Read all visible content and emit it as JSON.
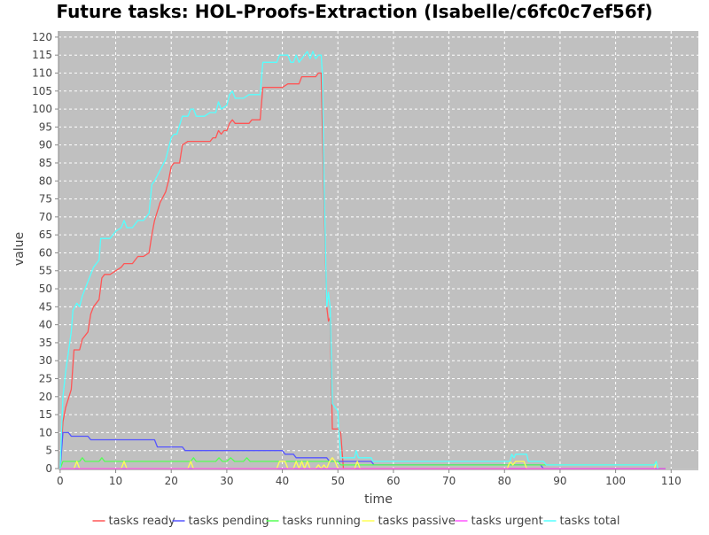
{
  "chart_data": {
    "type": "line",
    "title": "Future tasks: HOL-Proofs-Extraction (Isabelle/c6fc0c7ef56f)",
    "xlabel": "time",
    "ylabel": "value",
    "xlim": [
      -0.3,
      114.9
    ],
    "ylim": [
      0,
      121.7
    ],
    "xticks": [
      0,
      10,
      20,
      30,
      40,
      50,
      60,
      70,
      80,
      90,
      100,
      110
    ],
    "yticks": [
      0,
      5,
      10,
      15,
      20,
      25,
      30,
      35,
      40,
      45,
      50,
      55,
      60,
      65,
      70,
      75,
      80,
      85,
      90,
      95,
      100,
      105,
      110,
      115,
      120
    ],
    "grid": true,
    "legend_position": "bottom",
    "plot_background": "#c0c0c0",
    "series": [
      {
        "name": "tasks ready",
        "color": "#ff5555",
        "points": [
          [
            0,
            0
          ],
          [
            0.5,
            13
          ],
          [
            1,
            17
          ],
          [
            2,
            22
          ],
          [
            2.5,
            33
          ],
          [
            3.5,
            33
          ],
          [
            4,
            36
          ],
          [
            5,
            38
          ],
          [
            5.5,
            43
          ],
          [
            6,
            45
          ],
          [
            6.5,
            46
          ],
          [
            7,
            47
          ],
          [
            7.5,
            53
          ],
          [
            8,
            54
          ],
          [
            9,
            54
          ],
          [
            10,
            55
          ],
          [
            11,
            56
          ],
          [
            11.5,
            57
          ],
          [
            13,
            57
          ],
          [
            14,
            59
          ],
          [
            15,
            59
          ],
          [
            16,
            60
          ],
          [
            16.5,
            65
          ],
          [
            17,
            69
          ],
          [
            18,
            74
          ],
          [
            19,
            77
          ],
          [
            19.5,
            80
          ],
          [
            20,
            84
          ],
          [
            20.5,
            85
          ],
          [
            21.5,
            85
          ],
          [
            22,
            90
          ],
          [
            23,
            91
          ],
          [
            27,
            91
          ],
          [
            27.5,
            92
          ],
          [
            28,
            92
          ],
          [
            28.5,
            94
          ],
          [
            29,
            93
          ],
          [
            29.5,
            94
          ],
          [
            30,
            94
          ],
          [
            30.5,
            96
          ],
          [
            31,
            97
          ],
          [
            31.5,
            96
          ],
          [
            34,
            96
          ],
          [
            34.5,
            97
          ],
          [
            36,
            97
          ],
          [
            36.5,
            106
          ],
          [
            40,
            106
          ],
          [
            41,
            107
          ],
          [
            43,
            107
          ],
          [
            43.5,
            109
          ],
          [
            46,
            109
          ],
          [
            46.5,
            110
          ],
          [
            47,
            110
          ],
          [
            47.5,
            75
          ],
          [
            48,
            45
          ],
          [
            48.3,
            41
          ],
          [
            48.6,
            42
          ],
          [
            49,
            11
          ],
          [
            50,
            11
          ],
          [
            50.5,
            10
          ],
          [
            51,
            0
          ],
          [
            109,
            0
          ]
        ]
      },
      {
        "name": "tasks pending",
        "color": "#5555ff",
        "points": [
          [
            0,
            0
          ],
          [
            0.5,
            10
          ],
          [
            1.5,
            10
          ],
          [
            2,
            9
          ],
          [
            5,
            9
          ],
          [
            5.5,
            8
          ],
          [
            17,
            8
          ],
          [
            17.5,
            6
          ],
          [
            22,
            6
          ],
          [
            22.5,
            5
          ],
          [
            40,
            5
          ],
          [
            40.5,
            4
          ],
          [
            42,
            4
          ],
          [
            42.5,
            3
          ],
          [
            48,
            3
          ],
          [
            48.5,
            2
          ],
          [
            56,
            2
          ],
          [
            56.5,
            1
          ],
          [
            86.5,
            1
          ],
          [
            87,
            0
          ],
          [
            109,
            0
          ]
        ]
      },
      {
        "name": "tasks running",
        "color": "#55ff55",
        "points": [
          [
            0,
            0
          ],
          [
            0.5,
            2
          ],
          [
            3.5,
            2
          ],
          [
            4,
            3
          ],
          [
            4.5,
            2
          ],
          [
            7,
            2
          ],
          [
            7.5,
            3
          ],
          [
            8,
            2
          ],
          [
            23.5,
            2
          ],
          [
            24,
            3
          ],
          [
            24.5,
            2
          ],
          [
            28,
            2
          ],
          [
            28.6,
            3
          ],
          [
            29.2,
            2
          ],
          [
            30,
            2
          ],
          [
            30.7,
            3
          ],
          [
            31.4,
            2
          ],
          [
            33,
            2
          ],
          [
            33.6,
            3
          ],
          [
            34.2,
            2
          ],
          [
            49,
            2
          ],
          [
            50,
            2
          ],
          [
            50.5,
            1
          ],
          [
            107,
            1
          ],
          [
            107.3,
            2
          ],
          [
            107.6,
            0
          ],
          [
            109,
            0
          ]
        ]
      },
      {
        "name": "tasks passive",
        "color": "#ffff55",
        "points": [
          [
            0,
            0
          ],
          [
            2.5,
            0
          ],
          [
            3,
            2
          ],
          [
            3.5,
            0
          ],
          [
            11,
            0
          ],
          [
            11.5,
            2
          ],
          [
            12,
            0
          ],
          [
            23,
            0
          ],
          [
            23.5,
            2
          ],
          [
            24,
            0
          ],
          [
            39,
            0
          ],
          [
            39.5,
            2
          ],
          [
            40.5,
            2
          ],
          [
            41,
            0
          ],
          [
            42,
            0
          ],
          [
            42.5,
            2
          ],
          [
            43,
            0
          ],
          [
            43.5,
            2
          ],
          [
            44,
            0
          ],
          [
            44.5,
            2
          ],
          [
            45,
            0
          ],
          [
            46,
            0
          ],
          [
            46.5,
            1
          ],
          [
            47,
            0
          ],
          [
            47.5,
            1
          ],
          [
            48,
            0
          ],
          [
            48.5,
            2
          ],
          [
            49,
            3
          ],
          [
            49.5,
            2
          ],
          [
            50,
            0
          ],
          [
            53,
            0
          ],
          [
            53.5,
            2
          ],
          [
            54,
            0
          ],
          [
            80.5,
            0
          ],
          [
            81,
            2
          ],
          [
            81.5,
            1
          ],
          [
            82,
            2
          ],
          [
            83.5,
            2
          ],
          [
            84,
            0
          ],
          [
            107,
            0
          ],
          [
            107.3,
            2
          ],
          [
            107.6,
            0
          ]
        ]
      },
      {
        "name": "tasks urgent",
        "color": "#ff55ff",
        "points": [
          [
            0,
            0
          ],
          [
            109,
            0
          ]
        ]
      },
      {
        "name": "tasks total",
        "color": "#55ffff",
        "points": [
          [
            0,
            0
          ],
          [
            0.5,
            20
          ],
          [
            1,
            27
          ],
          [
            2,
            38
          ],
          [
            2.3,
            44
          ],
          [
            3,
            46
          ],
          [
            3.5,
            45
          ],
          [
            4,
            48
          ],
          [
            5,
            52
          ],
          [
            6,
            56
          ],
          [
            7,
            58
          ],
          [
            7.3,
            64
          ],
          [
            9,
            64
          ],
          [
            10,
            66
          ],
          [
            11,
            67
          ],
          [
            11.5,
            69
          ],
          [
            12,
            67
          ],
          [
            13,
            67
          ],
          [
            14,
            69
          ],
          [
            15,
            69
          ],
          [
            16,
            71
          ],
          [
            16.5,
            79
          ],
          [
            17,
            80
          ],
          [
            18,
            83
          ],
          [
            19,
            86
          ],
          [
            20,
            92
          ],
          [
            20.5,
            93
          ],
          [
            21,
            93
          ],
          [
            22,
            98
          ],
          [
            23,
            98
          ],
          [
            23.5,
            100
          ],
          [
            24,
            100
          ],
          [
            24.5,
            98
          ],
          [
            26,
            98
          ],
          [
            27,
            99
          ],
          [
            28,
            99
          ],
          [
            28.5,
            102
          ],
          [
            29,
            100
          ],
          [
            30,
            101
          ],
          [
            30.5,
            104
          ],
          [
            31,
            105
          ],
          [
            31.5,
            103
          ],
          [
            33,
            103
          ],
          [
            34,
            104
          ],
          [
            36,
            104
          ],
          [
            36.5,
            113
          ],
          [
            39,
            113
          ],
          [
            39.5,
            115
          ],
          [
            41,
            115
          ],
          [
            41.5,
            113
          ],
          [
            42,
            113
          ],
          [
            42.5,
            115
          ],
          [
            43,
            113
          ],
          [
            44,
            115
          ],
          [
            44.5,
            116
          ],
          [
            45,
            114
          ],
          [
            45.5,
            116
          ],
          [
            46,
            114
          ],
          [
            46.5,
            115
          ],
          [
            47,
            115
          ],
          [
            47.2,
            110
          ],
          [
            47.5,
            80
          ],
          [
            48,
            45
          ],
          [
            48.3,
            49
          ],
          [
            48.6,
            45
          ],
          [
            49,
            18
          ],
          [
            49.5,
            17
          ],
          [
            50,
            16
          ],
          [
            50.5,
            3
          ],
          [
            53,
            3
          ],
          [
            53.3,
            5
          ],
          [
            53.7,
            3
          ],
          [
            56,
            3
          ],
          [
            56.3,
            2
          ],
          [
            81,
            2
          ],
          [
            81.3,
            4
          ],
          [
            81.7,
            3
          ],
          [
            82,
            4
          ],
          [
            84,
            4
          ],
          [
            84.3,
            2
          ],
          [
            87,
            2
          ],
          [
            87.5,
            1
          ],
          [
            107,
            1
          ],
          [
            107.3,
            2
          ],
          [
            107.6,
            0
          ]
        ]
      }
    ]
  }
}
